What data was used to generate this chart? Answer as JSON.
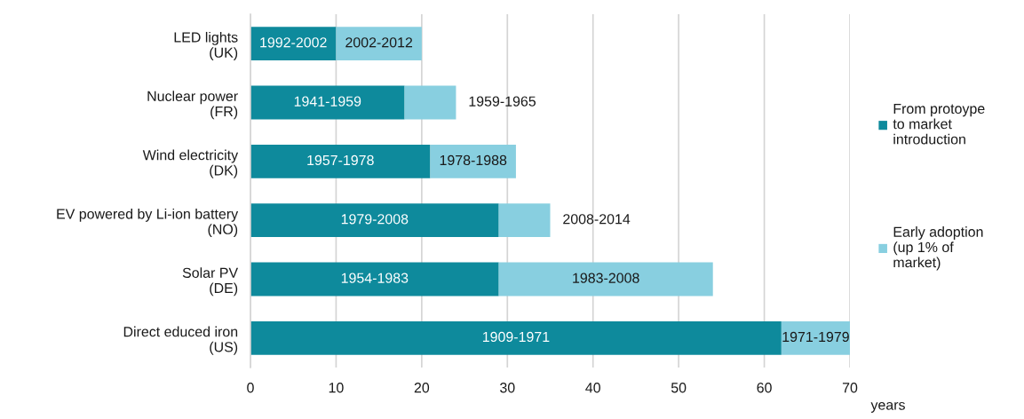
{
  "chart_data": {
    "type": "bar",
    "orientation": "horizontal",
    "stacked": true,
    "categories": [
      "LED lights\n(UK)",
      "Nuclear power\n(FR)",
      "Wind electricity\n(DK)",
      "EV powered by Li-ion battery\n(NO)",
      "Solar PV\n(DE)",
      "Direct educed iron\n(US)"
    ],
    "series": [
      {
        "name": "From protoype\nto market\nintroduction",
        "color": "#0e8a9c",
        "values": [
          10,
          18,
          21,
          29,
          29,
          62
        ],
        "value_labels": [
          "1992-2002",
          "1941-1959",
          "1957-1978",
          "1979-2008",
          "1954-1983",
          "1909-1971"
        ]
      },
      {
        "name": "Early adoption\n(up 1% of\nmarket)",
        "color": "#88cfe0",
        "values": [
          10,
          6,
          10,
          6,
          25,
          8
        ],
        "value_labels": [
          "2002-2012",
          "1959-1965",
          "1978-1988",
          "2008-2014",
          "1983-2008",
          "1971-1979"
        ]
      }
    ],
    "xlabel": "years",
    "xlim": [
      0,
      70
    ],
    "xticks": [
      0,
      10,
      20,
      30,
      40,
      50,
      60,
      70
    ],
    "grid": "x",
    "legend": "right"
  }
}
